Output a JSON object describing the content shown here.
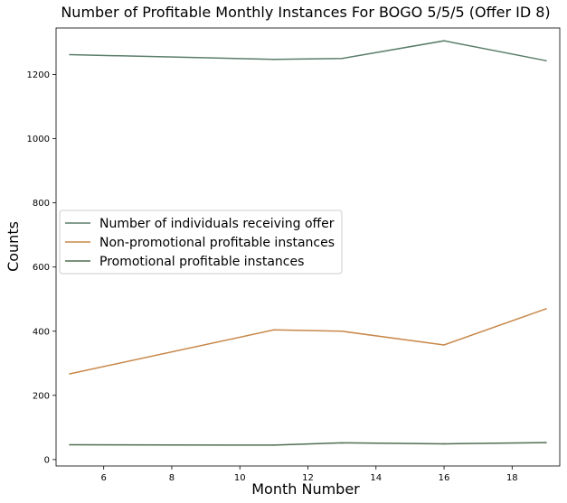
{
  "chart_data": {
    "type": "line",
    "title": "Number of Profitable Monthly Instances For BOGO 5/5/5 (Offer ID 8)",
    "xlabel": "Month Number",
    "ylabel": "Counts",
    "xlim": [
      4.6,
      19.4
    ],
    "ylim": [
      -20,
      1345
    ],
    "xticks": [
      6,
      8,
      10,
      12,
      14,
      16,
      18
    ],
    "yticks": [
      0,
      200,
      400,
      600,
      800,
      1000,
      1200
    ],
    "grid": false,
    "legend_position": "center-left",
    "x": [
      5,
      11,
      13,
      16,
      19
    ],
    "series": [
      {
        "name": "Number of individuals receiving offer",
        "color": "#5a7d6a",
        "values": [
          1262,
          1247,
          1250,
          1305,
          1243
        ]
      },
      {
        "name": "Non-promotional profitable instances",
        "color": "#c8884a",
        "values": [
          267,
          404,
          400,
          357,
          470
        ]
      },
      {
        "name": "Promotional profitable instances",
        "color": "#4f6f52",
        "values": [
          46,
          45,
          52,
          49,
          53
        ]
      }
    ]
  }
}
